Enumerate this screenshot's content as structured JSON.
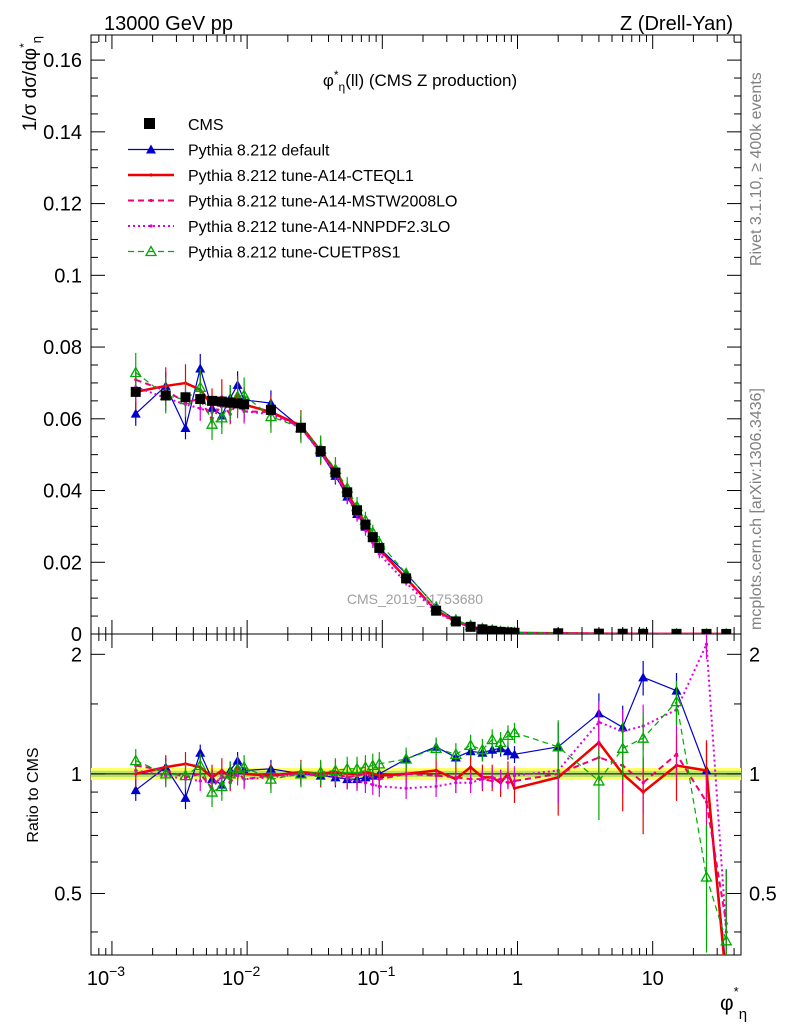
{
  "header": {
    "left": "13000 GeV pp",
    "right": "Z (Drell-Yan)"
  },
  "side": {
    "rivet": "Rivet 3.1.10, ≥ 400k events",
    "mcplots": "mcplots.cern.ch [arXiv:1306.3436]"
  },
  "chart_data": {
    "type": "line",
    "title": "φ*η(ll) (CMS Z production)",
    "watermark": "CMS_2019_I1753680",
    "xlabel": "φ*η",
    "ylabel_main": "1/σ dσ/dφ*η",
    "ylabel_ratio": "Ratio to CMS",
    "xscale": "log",
    "xlim": [
      0.0007,
      45
    ],
    "ylim_main": [
      0,
      0.167
    ],
    "ylim_ratio": [
      0.35,
      2.25
    ],
    "x_ticks": [
      {
        "value": 0.001,
        "base": "10",
        "exp": "−3"
      },
      {
        "value": 0.01,
        "base": "10",
        "exp": "−2"
      },
      {
        "value": 0.1,
        "base": "10",
        "exp": "−1"
      },
      {
        "value": 1,
        "base": "1",
        "exp": ""
      },
      {
        "value": 10,
        "base": "10",
        "exp": ""
      }
    ],
    "y_ticks_main": [
      "0",
      "0.02",
      "0.04",
      "0.06",
      "0.08",
      "0.1",
      "0.12",
      "0.14",
      "0.16"
    ],
    "y_ticks_ratio": [
      "0.5",
      "1",
      "2"
    ],
    "x": [
      0.0015,
      0.0025,
      0.0035,
      0.0045,
      0.0055,
      0.0065,
      0.0075,
      0.0085,
      0.0095,
      0.015,
      0.025,
      0.035,
      0.045,
      0.055,
      0.065,
      0.075,
      0.085,
      0.095,
      0.15,
      0.25,
      0.35,
      0.45,
      0.55,
      0.65,
      0.75,
      0.85,
      0.95,
      2,
      4,
      6,
      8.5,
      15,
      25,
      35
    ],
    "cms": [
      0.0675,
      0.0665,
      0.066,
      0.0655,
      0.065,
      0.0648,
      0.0645,
      0.0643,
      0.064,
      0.0625,
      0.0575,
      0.051,
      0.045,
      0.0395,
      0.0345,
      0.0305,
      0.027,
      0.024,
      0.0155,
      0.0065,
      0.0035,
      0.002,
      0.0013,
      0.0009,
      0.0006,
      0.00045,
      0.00035,
      0.0002,
      0.0001,
      7e-05,
      5e-05,
      4e-05,
      3e-05,
      2e-05
    ],
    "series": [
      {
        "name": "CMS",
        "color": "#000000",
        "style": "marker"
      },
      {
        "name": "Pythia 8.212 default",
        "color": "#0000cc",
        "style": "solid-triangle",
        "ratio": [
          0.91,
          1.04,
          0.87,
          1.13,
          0.97,
          0.94,
          1.02,
          1.08,
          1.02,
          1.03,
          1.0,
          0.99,
          0.98,
          0.97,
          0.97,
          0.98,
          0.99,
          1.0,
          1.09,
          1.17,
          1.1,
          1.14,
          1.13,
          1.15,
          1.16,
          1.14,
          1.12,
          1.17,
          1.42,
          1.31,
          1.75,
          1.62,
          1.02,
          0.32
        ]
      },
      {
        "name": "Pythia 8.212 tune-A14-CTEQL1",
        "color": "#ee0000",
        "style": "thick",
        "ratio": [
          1.0,
          1.04,
          1.06,
          1.04,
          0.98,
          1.02,
          0.98,
          1.04,
          1.0,
          0.99,
          1.01,
          1.0,
          1.01,
          1.0,
          1.0,
          1.01,
          1.0,
          0.99,
          1.0,
          1.02,
          0.97,
          1.04,
          0.98,
          0.98,
          0.95,
          1.0,
          0.92,
          0.98,
          1.2,
          1.0,
          0.9,
          1.05,
          1.02,
          0.3
        ]
      },
      {
        "name": "Pythia 8.212 tune-A14-MSTW2008LO",
        "color": "#ee0077",
        "style": "dashed",
        "ratio": [
          1.05,
          1.02,
          0.98,
          1.0,
          0.92,
          0.99,
          0.95,
          1.01,
          0.97,
          0.99,
          1.0,
          0.99,
          1.0,
          0.98,
          0.99,
          1.0,
          0.98,
          0.97,
          1.0,
          0.99,
          0.98,
          0.97,
          0.97,
          0.96,
          0.97,
          0.95,
          0.96,
          1.0,
          1.1,
          1.05,
          0.95,
          1.12,
          0.85,
          0.42
        ]
      },
      {
        "name": "Pythia 8.212 tune-A14-NNPDF2.3LO",
        "color": "#dd00dd",
        "style": "dotted",
        "ratio": [
          1.02,
          0.99,
          0.97,
          0.96,
          0.95,
          0.98,
          0.97,
          0.99,
          0.97,
          0.98,
          1.0,
          0.99,
          0.99,
          0.97,
          0.96,
          0.95,
          0.94,
          0.93,
          0.92,
          0.93,
          0.95,
          0.95,
          0.97,
          0.98,
          0.97,
          0.98,
          0.99,
          1.02,
          1.35,
          1.28,
          1.32,
          1.45,
          2.12,
          0.4
        ]
      },
      {
        "name": "Pythia 8.212 tune-CUETP8S1",
        "color": "#00aa00",
        "style": "dashed-open-triangle",
        "ratio": [
          1.08,
          1.0,
          0.99,
          1.05,
          0.9,
          0.93,
          1.0,
          1.03,
          1.04,
          0.97,
          1.0,
          1.01,
          1.02,
          1.03,
          1.03,
          1.04,
          1.05,
          1.06,
          1.09,
          1.16,
          1.12,
          1.18,
          1.15,
          1.22,
          1.2,
          1.25,
          1.27,
          1.17,
          0.96,
          1.16,
          1.23,
          1.52,
          0.55,
          0.38
        ]
      }
    ]
  }
}
